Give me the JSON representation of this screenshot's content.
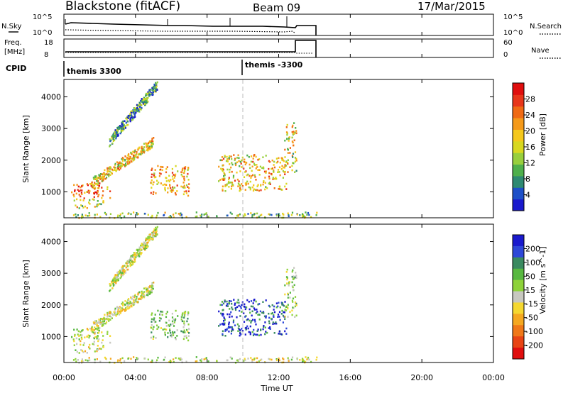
{
  "chart_data": {
    "type": "heatmap",
    "header": {
      "station": "Blackstone (fitACF)",
      "beam": "Beam 09",
      "date": "17/Mar/2015"
    },
    "params_panels": {
      "nsky": {
        "left_label": "N.Sky",
        "left_ticks": [
          "10^5",
          "10^0"
        ],
        "right_ticks": [
          "10^5",
          "10^0"
        ],
        "right_label": "N.Search"
      },
      "freq": {
        "left_label": "Freq.",
        "left_unit": "[MHz]",
        "left_ticks": [
          "18",
          "8"
        ],
        "right_ticks": [
          "60",
          "0"
        ],
        "right_label": "Nave"
      },
      "cpid": {
        "label": "CPID",
        "programs": [
          {
            "name": "themis 3300",
            "start_hour": 0
          },
          {
            "name": "themis -3300",
            "start_hour": 10
          }
        ]
      }
    },
    "freq_trace": {
      "before_hour": 12.8,
      "freq_mhz": 10.5,
      "nave": 60
    },
    "x_axis": {
      "label": "Time UT",
      "range_hours": [
        0,
        24
      ],
      "tick_labels": [
        "00:00",
        "04:00",
        "08:00",
        "12:00",
        "16:00",
        "20:00",
        "00:00"
      ],
      "data_end_hour": 14.1
    },
    "y_axis": {
      "label": "Slant Range [km]",
      "range_km": [
        180,
        4550
      ],
      "tick_labels": [
        "1000",
        "2000",
        "3000",
        "4000"
      ],
      "tick_values": [
        1000,
        2000,
        3000,
        4000
      ]
    },
    "power_panel": {
      "colorbar_label": "Power [dB]",
      "colorbar_ticks": [
        "4",
        "8",
        "12",
        "16",
        "20",
        "24",
        "28"
      ],
      "range": [
        0,
        30
      ],
      "colors": [
        "#1a1acd",
        "#1e50c8",
        "#2e8a72",
        "#4fb04c",
        "#98cf3d",
        "#d8d820",
        "#f5c81c",
        "#f59a1a",
        "#f06a14",
        "#e8361a",
        "#e00e0e"
      ]
    },
    "velocity_panel": {
      "colorbar_label": "Velocity [m s^-1]",
      "colorbar_ticks": [
        "200",
        "100",
        "50",
        "15",
        "-15",
        "-50",
        "-100",
        "-200"
      ],
      "range": [
        -250,
        250
      ],
      "colors": [
        "#1a1acd",
        "#2e48d8",
        "#3a8a60",
        "#58b840",
        "#8ed23a",
        "#c8c8c0",
        "#f5d830",
        "#f5a820",
        "#f07818",
        "#e84414",
        "#e00e0e"
      ]
    },
    "scatter_regions": [
      {
        "name": "early-band",
        "t0": 0.3,
        "t1": 2.6,
        "r0": 820,
        "r1": 1300,
        "pw": 23,
        "vel": 0
      },
      {
        "name": "low-near",
        "t0": 0.5,
        "t1": 2.2,
        "r0": 500,
        "r1": 800,
        "pw": 14,
        "vel": 0
      },
      {
        "name": "diag-band",
        "t0": 1.5,
        "t1": 5.0,
        "r0": 1300,
        "r1": 2600,
        "pw": 17,
        "vel": 0,
        "slope": 1
      },
      {
        "name": "upper-streak",
        "t0": 2.5,
        "t1": 5.2,
        "r0": 2600,
        "r1": 4400,
        "pw": 8,
        "vel": 0,
        "slope": 1
      },
      {
        "name": "blob-6h",
        "t0": 4.8,
        "t1": 7.0,
        "r0": 900,
        "r1": 1850,
        "pw": 19,
        "vel": 60
      },
      {
        "name": "arc-11h",
        "t0": 8.6,
        "t1": 12.4,
        "r0": 1050,
        "r1": 2200,
        "pw": 18,
        "vel": 180
      },
      {
        "name": "late-narrow",
        "t0": 12.3,
        "t1": 13.0,
        "r0": 1600,
        "r1": 3200,
        "pw": 16,
        "vel": 40
      },
      {
        "name": "ground-scatter",
        "t0": 0.5,
        "t1": 14.1,
        "r0": 200,
        "r1": 380,
        "pw": 12,
        "vel": 0
      }
    ]
  }
}
